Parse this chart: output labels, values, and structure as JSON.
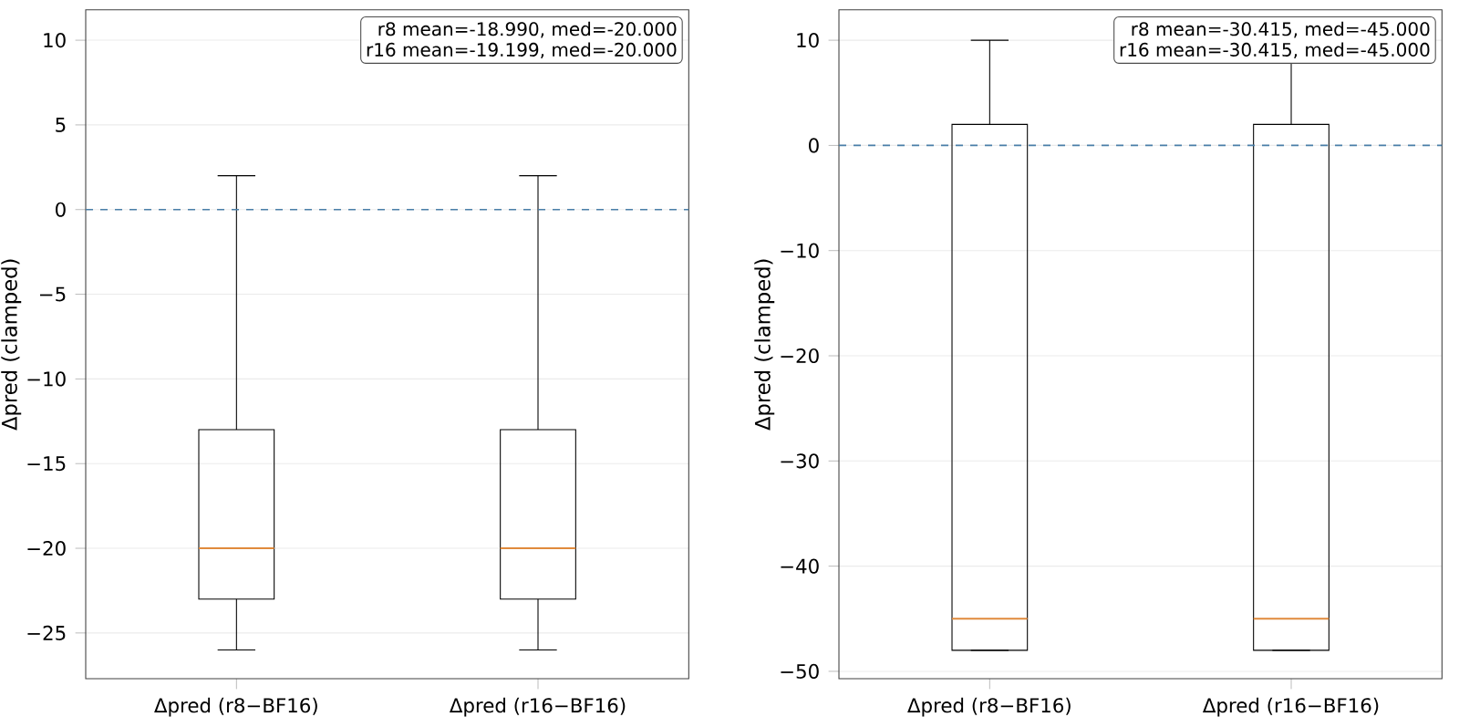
{
  "chart_data": [
    {
      "type": "box",
      "ylabel": "Δpred (clamped)",
      "categories": [
        "Δpred (r8−BF16)",
        "Δpred (r16−BF16)"
      ],
      "boxes": [
        {
          "low": -26,
          "q1": -23,
          "median": -20,
          "q3": -13,
          "high": 2
        },
        {
          "low": -26,
          "q1": -23,
          "median": -20,
          "q3": -13,
          "high": 2
        }
      ],
      "color": "#000000",
      "ylim": [
        -27.7,
        11.8
      ],
      "yticks": [
        {
          "value": -25,
          "label": "−25"
        },
        {
          "value": -20,
          "label": "−20"
        },
        {
          "value": -15,
          "label": "−15"
        },
        {
          "value": -10,
          "label": "−10"
        },
        {
          "value": -5,
          "label": "−5"
        },
        0,
        5,
        10
      ],
      "grid": "y",
      "ref_lines": [
        {
          "axis": "y",
          "value": 0,
          "color": "#4a7fa8",
          "line_style": "dashed"
        }
      ],
      "annotations": [
        "r8 mean=-18.990, med=-20.000",
        "r16 mean=-19.199, med=-20.000"
      ]
    },
    {
      "type": "box",
      "ylabel": "Δpred (clamped)",
      "categories": [
        "Δpred (r8−BF16)",
        "Δpred (r16−BF16)"
      ],
      "boxes": [
        {
          "low": -48,
          "q1": -48,
          "median": -45,
          "q3": 2,
          "high": 10
        },
        {
          "low": -48,
          "q1": -48,
          "median": -45,
          "q3": 2,
          "high": 10
        }
      ],
      "color": "#000000",
      "ylim": [
        -50.7,
        12.9
      ],
      "yticks": [
        {
          "value": -50,
          "label": "−50"
        },
        {
          "value": -40,
          "label": "−40"
        },
        {
          "value": -30,
          "label": "−30"
        },
        {
          "value": -20,
          "label": "−20"
        },
        {
          "value": -10,
          "label": "−10"
        },
        0,
        10
      ],
      "grid": "y",
      "ref_lines": [
        {
          "axis": "y",
          "value": 0,
          "color": "#4a7fa8",
          "line_style": "dashed"
        }
      ],
      "annotations": [
        "r8 mean=-30.415, med=-45.000",
        "r16 mean=-30.415, med=-45.000"
      ]
    }
  ]
}
